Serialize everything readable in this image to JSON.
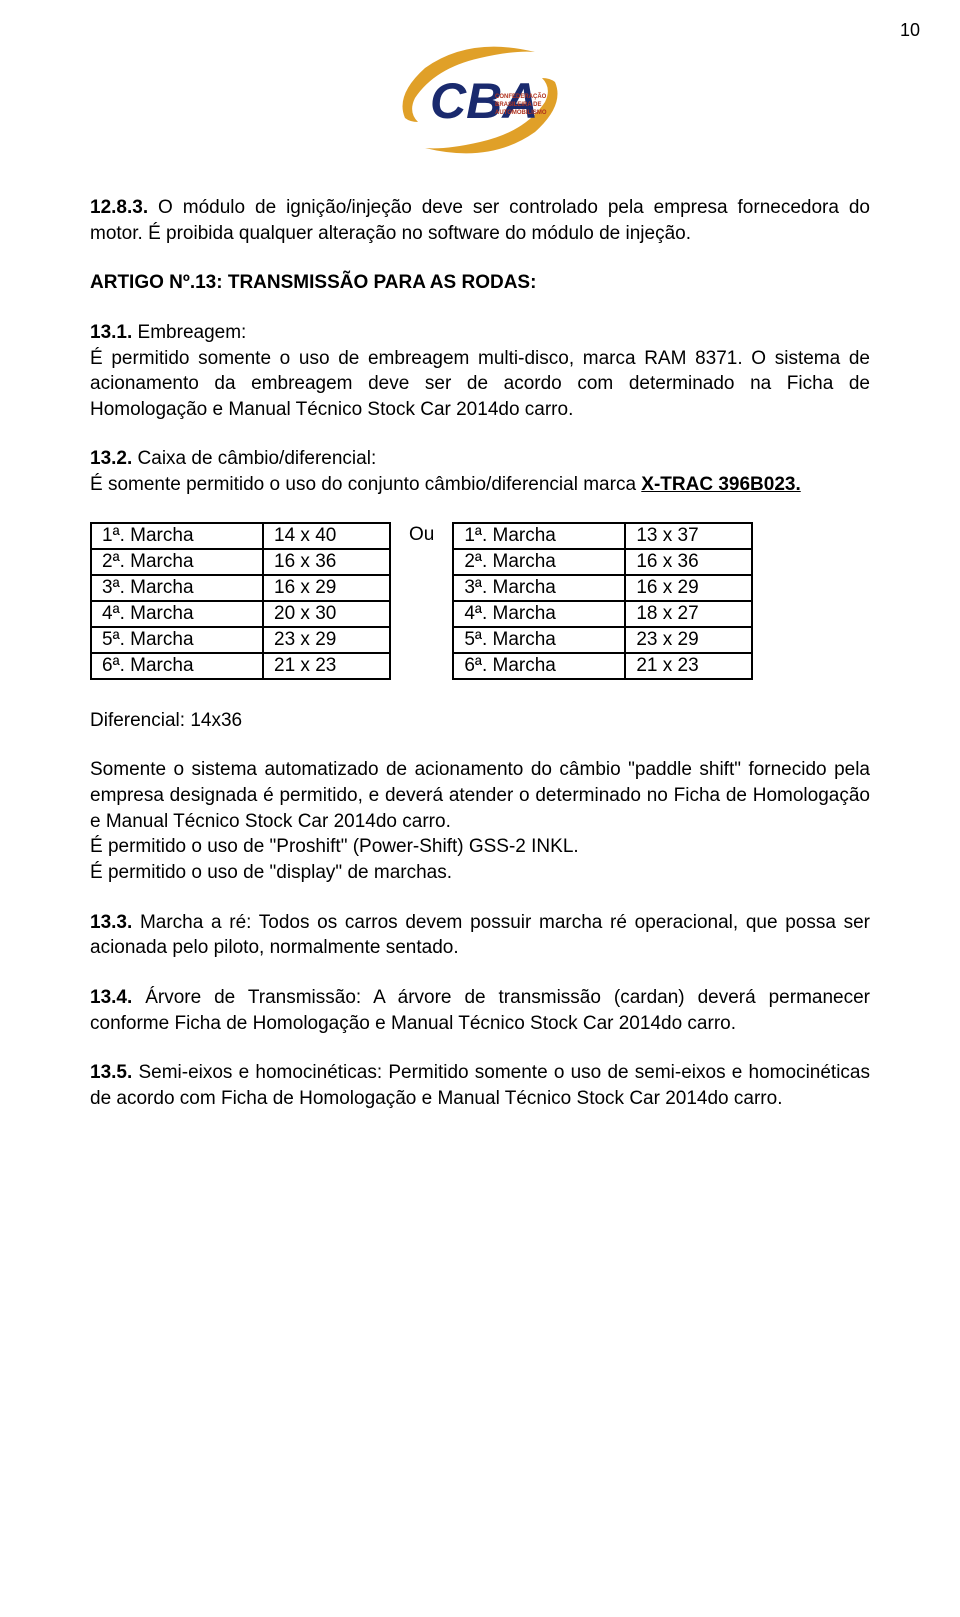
{
  "page_number": "10",
  "logo": {
    "letters": "CBA",
    "line1": "CONFEDERAÇÃO",
    "line2": "BRASILEIRA DE",
    "line3": "AUTOMOBILISMO",
    "swoosh_color": "#e0a028",
    "letter_color": "#1a2a6e",
    "text_color": "#b0321e"
  },
  "p1_bold": "12.8.3.",
  "p1_text": " O módulo de ignição/injeção deve ser controlado pela empresa fornecedora do motor. É proibida qualquer alteração no software do módulo de injeção.",
  "p2_bold": "ARTIGO Nº.13: TRANSMISSÃO PARA AS RODAS:",
  "p3_bold": "13.1.",
  "p3_l1": " Embreagem:",
  "p3_l2": "É permitido somente o uso de embreagem multi-disco, marca RAM 8371. O sistema de acionamento da embreagem deve ser de acordo com determinado na Ficha de Homologação e Manual Técnico Stock Car 2014do carro.",
  "p4_bold": "13.2.",
  "p4_l1": " Caixa de câmbio/diferencial:",
  "p4_l2a": "É somente permitido o uso do conjunto câmbio/diferencial marca ",
  "p4_l2b": "X-TRAC 396B023.",
  "ou_label": "Ou",
  "table1": [
    [
      "1ª. Marcha",
      "14 x 40"
    ],
    [
      "2ª. Marcha",
      "16 x 36"
    ],
    [
      "3ª. Marcha",
      "16 x 29"
    ],
    [
      "4ª. Marcha",
      "20 x 30"
    ],
    [
      "5ª. Marcha",
      "23 x 29"
    ],
    [
      "6ª. Marcha",
      "21 x 23"
    ]
  ],
  "table2": [
    [
      "1ª. Marcha",
      "13 x 37"
    ],
    [
      "2ª. Marcha",
      "16 x 36"
    ],
    [
      "3ª. Marcha",
      "16 x 29"
    ],
    [
      "4ª. Marcha",
      "18 x 27"
    ],
    [
      "5ª. Marcha",
      "23 x 29"
    ],
    [
      "6ª. Marcha",
      "21 x 23"
    ]
  ],
  "p5": "Diferencial: 14x36",
  "p6_l1": "Somente o sistema automatizado de acionamento do câmbio \"paddle shift\" fornecido pela empresa designada é permitido, e deverá atender o determinado no Ficha de Homologação e Manual Técnico Stock Car 2014do carro.",
  "p6_l2": "É permitido o uso de \"Proshift\" (Power-Shift) GSS-2 INKL.",
  "p6_l3": "É permitido o uso de \"display\" de marchas.",
  "p7_bold": "13.3.",
  "p7_text": " Marcha a ré: Todos os carros devem possuir marcha ré operacional, que possa ser acionada pelo piloto, normalmente sentado.",
  "p8_bold": "13.4.",
  "p8_text": " Árvore de Transmissão: A árvore de transmissão (cardan) deverá permanecer conforme Ficha de Homologação e Manual Técnico Stock Car 2014do carro.",
  "p9_bold": "13.5.",
  "p9_text": " Semi-eixos e homocinéticas: Permitido somente o uso de semi-eixos e homocinéticas de acordo com Ficha de Homologação e Manual Técnico Stock Car 2014do carro."
}
